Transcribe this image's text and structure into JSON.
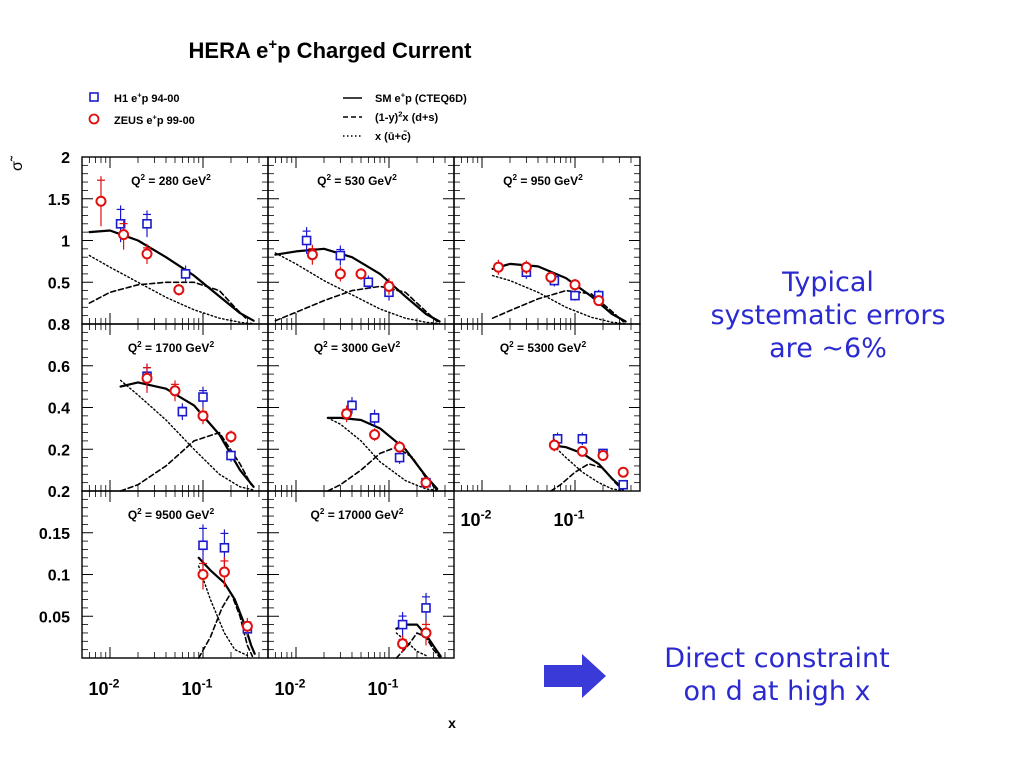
{
  "chart_data": {
    "type": "scatter",
    "title_prefix": "HERA e",
    "title_sup": "+",
    "title_suffix": "p Charged Current",
    "xlabel": "x",
    "ylabel": "σ̃",
    "xscale": "log",
    "x_tick_labels": [
      {
        "base": "10",
        "exp": "-2",
        "value": 0.01
      },
      {
        "base": "10",
        "exp": "-1",
        "value": 0.1
      }
    ],
    "legend_data": [
      {
        "marker": "square",
        "color": "#1a1acc",
        "text": "H1 e",
        "sup": "+",
        "rest": "p 94-00"
      },
      {
        "marker": "circle",
        "color": "#e01010",
        "text": "ZEUS e",
        "sup": "+",
        "rest": "p 99-00"
      }
    ],
    "legend_curves": [
      {
        "style": "solid",
        "text": "SM  e",
        "sup": "+",
        "rest": "p (CTEQ6D)"
      },
      {
        "style": "dashed",
        "text": "(1-y)",
        "sup": "2",
        "rest": "x (d+s)"
      },
      {
        "style": "dotted",
        "text": "x (ū+c̄)",
        "sup": "",
        "rest": ""
      }
    ],
    "row_axes": [
      {
        "ylim": [
          0,
          2
        ],
        "ticks": [
          {
            "v": 0.5,
            "label": "0.5"
          },
          {
            "v": 1,
            "label": "1"
          },
          {
            "v": 1.5,
            "label": "1.5"
          },
          {
            "v": 2,
            "label": "2"
          }
        ]
      },
      {
        "ylim": [
          0,
          0.8
        ],
        "ticks": [
          {
            "v": 0.2,
            "label": "0.2"
          },
          {
            "v": 0.4,
            "label": "0.4"
          },
          {
            "v": 0.6,
            "label": "0.6"
          },
          {
            "v": 0.8,
            "label": "0.8"
          }
        ]
      },
      {
        "ylim": [
          0,
          0.2
        ],
        "ticks": [
          {
            "v": 0.05,
            "label": "0.05"
          },
          {
            "v": 0.1,
            "label": "0.1"
          },
          {
            "v": 0.15,
            "label": "0.15"
          },
          {
            "v": 0.2,
            "label": "0.2"
          }
        ]
      }
    ],
    "panels": [
      {
        "q2_prefix": "Q",
        "q2_sup": "2",
        "q2_text": " = 280 GeV",
        "q2_unit_sup": "2",
        "row": 0,
        "col": 0,
        "h1": [
          [
            0.013,
            1.2,
            0.22
          ],
          [
            0.025,
            1.2,
            0.16
          ],
          [
            0.065,
            0.6,
            0.1
          ]
        ],
        "zeus": [
          [
            0.008,
            1.47,
            0.3
          ],
          [
            0.014,
            1.07,
            0.18
          ],
          [
            0.025,
            0.84,
            0.12
          ],
          [
            0.055,
            0.41,
            0.07
          ]
        ],
        "sm": [
          [
            0.006,
            1.1
          ],
          [
            0.01,
            1.12
          ],
          [
            0.02,
            1.0
          ],
          [
            0.04,
            0.8
          ],
          [
            0.08,
            0.58
          ],
          [
            0.15,
            0.33
          ],
          [
            0.25,
            0.13
          ],
          [
            0.35,
            0.04
          ]
        ],
        "dsea": [
          [
            0.006,
            0.25
          ],
          [
            0.01,
            0.38
          ],
          [
            0.02,
            0.47
          ],
          [
            0.04,
            0.5
          ],
          [
            0.08,
            0.5
          ],
          [
            0.15,
            0.4
          ],
          [
            0.22,
            0.2
          ],
          [
            0.3,
            0.05
          ]
        ],
        "usea": [
          [
            0.006,
            0.82
          ],
          [
            0.01,
            0.68
          ],
          [
            0.02,
            0.5
          ],
          [
            0.04,
            0.32
          ],
          [
            0.08,
            0.17
          ],
          [
            0.15,
            0.07
          ],
          [
            0.25,
            0.02
          ],
          [
            0.35,
            0.005
          ]
        ]
      },
      {
        "q2_prefix": "Q",
        "q2_sup": "2",
        "q2_text": " = 530 GeV",
        "q2_unit_sup": "2",
        "row": 0,
        "col": 1,
        "h1": [
          [
            0.013,
            1.0,
            0.16
          ],
          [
            0.03,
            0.82,
            0.12
          ],
          [
            0.06,
            0.5,
            0.08
          ],
          [
            0.1,
            0.38,
            0.1
          ]
        ],
        "zeus": [
          [
            0.015,
            0.83,
            0.12
          ],
          [
            0.03,
            0.6,
            0.09
          ],
          [
            0.05,
            0.6,
            0.07
          ],
          [
            0.1,
            0.45,
            0.1
          ]
        ],
        "sm": [
          [
            0.006,
            0.83
          ],
          [
            0.01,
            0.87
          ],
          [
            0.02,
            0.9
          ],
          [
            0.04,
            0.8
          ],
          [
            0.08,
            0.6
          ],
          [
            0.15,
            0.33
          ],
          [
            0.25,
            0.12
          ],
          [
            0.35,
            0.03
          ]
        ],
        "dsea": [
          [
            0.006,
            0.04
          ],
          [
            0.01,
            0.14
          ],
          [
            0.02,
            0.28
          ],
          [
            0.04,
            0.4
          ],
          [
            0.08,
            0.45
          ],
          [
            0.15,
            0.38
          ],
          [
            0.25,
            0.15
          ],
          [
            0.33,
            0.03
          ]
        ],
        "usea": [
          [
            0.006,
            0.85
          ],
          [
            0.01,
            0.72
          ],
          [
            0.02,
            0.52
          ],
          [
            0.04,
            0.35
          ],
          [
            0.08,
            0.18
          ],
          [
            0.15,
            0.07
          ],
          [
            0.25,
            0.02
          ],
          [
            0.35,
            0.005
          ]
        ]
      },
      {
        "q2_prefix": "Q",
        "q2_sup": "2",
        "q2_text": " = 950 GeV",
        "q2_unit_sup": "2",
        "row": 0,
        "col": 2,
        "h1": [
          [
            0.03,
            0.62,
            0.08
          ],
          [
            0.06,
            0.52,
            0.07
          ],
          [
            0.1,
            0.34,
            0.06
          ],
          [
            0.18,
            0.34,
            0.07
          ]
        ],
        "zeus": [
          [
            0.015,
            0.68,
            0.09
          ],
          [
            0.03,
            0.68,
            0.08
          ],
          [
            0.055,
            0.56,
            0.06
          ],
          [
            0.1,
            0.47,
            0.07
          ],
          [
            0.18,
            0.28,
            0.06
          ]
        ],
        "sm": [
          [
            0.013,
            0.66
          ],
          [
            0.02,
            0.72
          ],
          [
            0.04,
            0.69
          ],
          [
            0.08,
            0.55
          ],
          [
            0.15,
            0.33
          ],
          [
            0.25,
            0.12
          ],
          [
            0.35,
            0.03
          ]
        ],
        "dsea": [
          [
            0.013,
            0.07
          ],
          [
            0.02,
            0.16
          ],
          [
            0.04,
            0.3
          ],
          [
            0.08,
            0.4
          ],
          [
            0.15,
            0.36
          ],
          [
            0.25,
            0.15
          ],
          [
            0.33,
            0.03
          ]
        ],
        "usea": [
          [
            0.013,
            0.58
          ],
          [
            0.02,
            0.52
          ],
          [
            0.04,
            0.38
          ],
          [
            0.08,
            0.2
          ],
          [
            0.15,
            0.08
          ],
          [
            0.25,
            0.02
          ],
          [
            0.35,
            0.005
          ]
        ]
      },
      {
        "q2_prefix": "Q",
        "q2_sup": "2",
        "q2_text": " = 1700 GeV",
        "q2_unit_sup": "2",
        "row": 1,
        "col": 0,
        "h1": [
          [
            0.025,
            0.55,
            0.06
          ],
          [
            0.06,
            0.38,
            0.04
          ],
          [
            0.1,
            0.45,
            0.05
          ],
          [
            0.2,
            0.17,
            0.03
          ]
        ],
        "zeus": [
          [
            0.025,
            0.54,
            0.07
          ],
          [
            0.05,
            0.48,
            0.05
          ],
          [
            0.1,
            0.36,
            0.04
          ],
          [
            0.2,
            0.26,
            0.03
          ]
        ],
        "sm": [
          [
            0.013,
            0.5
          ],
          [
            0.02,
            0.52
          ],
          [
            0.04,
            0.49
          ],
          [
            0.08,
            0.41
          ],
          [
            0.15,
            0.27
          ],
          [
            0.25,
            0.1
          ],
          [
            0.35,
            0.02
          ]
        ],
        "dsea": [
          [
            0.013,
            0.0
          ],
          [
            0.02,
            0.03
          ],
          [
            0.04,
            0.12
          ],
          [
            0.08,
            0.24
          ],
          [
            0.15,
            0.28
          ],
          [
            0.25,
            0.13
          ],
          [
            0.33,
            0.03
          ]
        ],
        "usea": [
          [
            0.013,
            0.53
          ],
          [
            0.02,
            0.46
          ],
          [
            0.04,
            0.34
          ],
          [
            0.08,
            0.2
          ],
          [
            0.15,
            0.08
          ],
          [
            0.25,
            0.02
          ],
          [
            0.35,
            0.005
          ]
        ]
      },
      {
        "q2_prefix": "Q",
        "q2_sup": "2",
        "q2_text": " = 3000 GeV",
        "q2_unit_sup": "2",
        "row": 1,
        "col": 1,
        "h1": [
          [
            0.04,
            0.41,
            0.04
          ],
          [
            0.07,
            0.35,
            0.04
          ],
          [
            0.13,
            0.16,
            0.03
          ],
          [
            0.25,
            0.04,
            0.02
          ]
        ],
        "zeus": [
          [
            0.035,
            0.37,
            0.04
          ],
          [
            0.07,
            0.27,
            0.03
          ],
          [
            0.13,
            0.21,
            0.03
          ],
          [
            0.25,
            0.04,
            0.015
          ]
        ],
        "sm": [
          [
            0.022,
            0.35
          ],
          [
            0.03,
            0.35
          ],
          [
            0.05,
            0.34
          ],
          [
            0.08,
            0.3
          ],
          [
            0.15,
            0.2
          ],
          [
            0.25,
            0.07
          ],
          [
            0.33,
            0.01
          ]
        ],
        "dsea": [
          [
            0.022,
            0.0
          ],
          [
            0.03,
            0.03
          ],
          [
            0.05,
            0.1
          ],
          [
            0.08,
            0.18
          ],
          [
            0.12,
            0.21
          ],
          [
            0.18,
            0.16
          ],
          [
            0.26,
            0.05
          ],
          [
            0.33,
            0.005
          ]
        ],
        "usea": [
          [
            0.022,
            0.35
          ],
          [
            0.03,
            0.32
          ],
          [
            0.05,
            0.24
          ],
          [
            0.08,
            0.14
          ],
          [
            0.15,
            0.05
          ],
          [
            0.25,
            0.01
          ],
          [
            0.33,
            0.003
          ]
        ]
      },
      {
        "q2_prefix": "Q",
        "q2_sup": "2",
        "q2_text": " = 5300 GeV",
        "q2_unit_sup": "2",
        "row": 1,
        "col": 2,
        "h1": [
          [
            0.065,
            0.25,
            0.03
          ],
          [
            0.12,
            0.25,
            0.03
          ],
          [
            0.2,
            0.18,
            0.02
          ],
          [
            0.33,
            0.03,
            0.015
          ]
        ],
        "zeus": [
          [
            0.06,
            0.22,
            0.03
          ],
          [
            0.12,
            0.19,
            0.02
          ],
          [
            0.2,
            0.17,
            0.02
          ],
          [
            0.33,
            0.09,
            0.02
          ]
        ],
        "sm": [
          [
            0.055,
            0.22
          ],
          [
            0.08,
            0.21
          ],
          [
            0.12,
            0.18
          ],
          [
            0.18,
            0.13
          ],
          [
            0.25,
            0.06
          ],
          [
            0.33,
            0.01
          ]
        ],
        "dsea": [
          [
            0.055,
            0.0
          ],
          [
            0.07,
            0.03
          ],
          [
            0.1,
            0.09
          ],
          [
            0.14,
            0.13
          ],
          [
            0.2,
            0.11
          ],
          [
            0.27,
            0.04
          ],
          [
            0.33,
            0.003
          ]
        ],
        "usea": [
          [
            0.055,
            0.23
          ],
          [
            0.08,
            0.16
          ],
          [
            0.12,
            0.09
          ],
          [
            0.18,
            0.04
          ],
          [
            0.25,
            0.01
          ],
          [
            0.33,
            0.002
          ]
        ]
      },
      {
        "q2_prefix": "Q",
        "q2_sup": "2",
        "q2_text": " = 9500 GeV",
        "q2_unit_sup": "2",
        "row": 2,
        "col": 0,
        "h1": [
          [
            0.1,
            0.135,
            0.025
          ],
          [
            0.17,
            0.132,
            0.022
          ],
          [
            0.3,
            0.035,
            0.01
          ]
        ],
        "zeus": [
          [
            0.1,
            0.1,
            0.018
          ],
          [
            0.17,
            0.103,
            0.018
          ],
          [
            0.3,
            0.038,
            0.01
          ]
        ],
        "sm": [
          [
            0.09,
            0.12
          ],
          [
            0.12,
            0.105
          ],
          [
            0.17,
            0.09
          ],
          [
            0.22,
            0.07
          ],
          [
            0.28,
            0.04
          ],
          [
            0.33,
            0.015
          ],
          [
            0.36,
            0.005
          ]
        ],
        "dsea": [
          [
            0.09,
            0.0
          ],
          [
            0.12,
            0.025
          ],
          [
            0.16,
            0.06
          ],
          [
            0.2,
            0.078
          ],
          [
            0.25,
            0.05
          ],
          [
            0.3,
            0.015
          ],
          [
            0.34,
            0.002
          ]
        ],
        "usea": [
          [
            0.09,
            0.11
          ],
          [
            0.12,
            0.07
          ],
          [
            0.17,
            0.03
          ],
          [
            0.22,
            0.01
          ],
          [
            0.3,
            0.003
          ]
        ]
      },
      {
        "q2_prefix": "Q",
        "q2_sup": "2",
        "q2_text": " = 17000 GeV",
        "q2_unit_sup": "2",
        "row": 2,
        "col": 1,
        "h1": [
          [
            0.14,
            0.04,
            0.015
          ],
          [
            0.25,
            0.06,
            0.018
          ]
        ],
        "zeus": [
          [
            0.14,
            0.017,
            0.01
          ],
          [
            0.25,
            0.03,
            0.015
          ]
        ],
        "sm": [
          [
            0.12,
            0.035
          ],
          [
            0.15,
            0.04
          ],
          [
            0.2,
            0.04
          ],
          [
            0.26,
            0.025
          ],
          [
            0.32,
            0.01
          ],
          [
            0.36,
            0.002
          ]
        ],
        "dsea": [
          [
            0.12,
            0.0
          ],
          [
            0.16,
            0.015
          ],
          [
            0.2,
            0.03
          ],
          [
            0.25,
            0.025
          ],
          [
            0.3,
            0.01
          ],
          [
            0.35,
            0.001
          ]
        ],
        "usea": [
          [
            0.12,
            0.03
          ],
          [
            0.16,
            0.018
          ],
          [
            0.2,
            0.008
          ],
          [
            0.26,
            0.002
          ]
        ]
      }
    ]
  },
  "notes": {
    "systematics": [
      "Typical",
      "systematic errors",
      "are ~6%"
    ],
    "constraint": [
      "Direct constraint",
      "on d at high x"
    ]
  },
  "colors": {
    "h1": "#1a1acc",
    "zeus": "#e01010",
    "note_text": "#2a2ad0",
    "arrow": "#3a3ad8"
  }
}
